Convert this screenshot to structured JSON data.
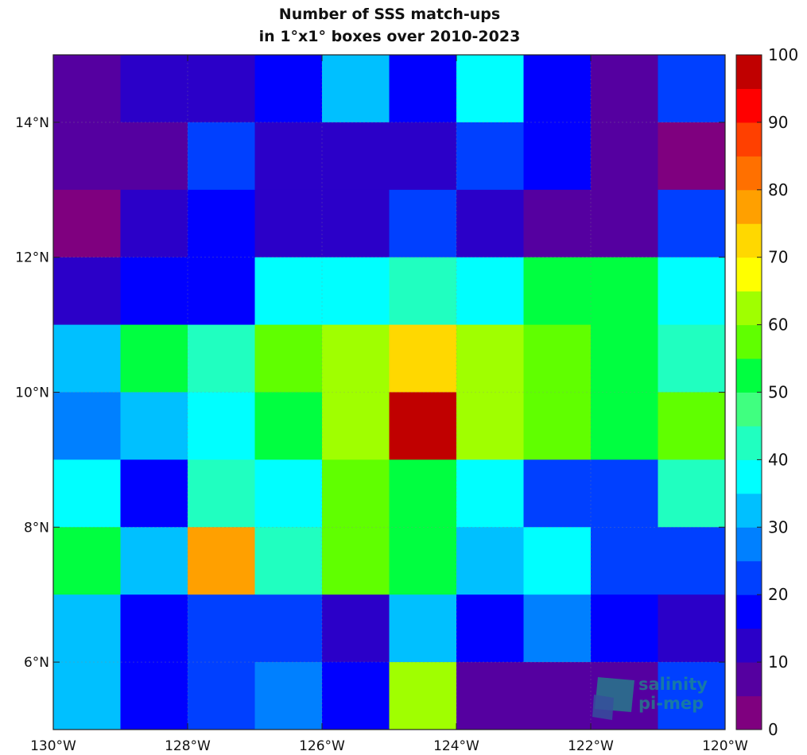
{
  "chart_data": {
    "type": "heatmap",
    "title": [
      "Number of SSS match-ups",
      "in 1°x1° boxes over 2010-2023"
    ],
    "x_centers": [
      -129.5,
      -128.5,
      -127.5,
      -126.5,
      -125.5,
      -124.5,
      -123.5,
      -122.5,
      -121.5,
      -120.5
    ],
    "y_centers": [
      14.5,
      13.5,
      12.5,
      11.5,
      10.5,
      9.5,
      8.5,
      7.5,
      6.5,
      5.5
    ],
    "xlim": [
      -130,
      -120
    ],
    "ylim": [
      5,
      15
    ],
    "x_ticks": [
      {
        "value": -130,
        "label": "130°W"
      },
      {
        "value": -128,
        "label": "128°W"
      },
      {
        "value": -126,
        "label": "126°W"
      },
      {
        "value": -124,
        "label": "124°W"
      },
      {
        "value": -122,
        "label": "122°W"
      },
      {
        "value": -120,
        "label": "120°W"
      }
    ],
    "y_ticks": [
      {
        "value": 14,
        "label": "14°N"
      },
      {
        "value": 12,
        "label": "12°N"
      },
      {
        "value": 10,
        "label": "10°N"
      },
      {
        "value": 8,
        "label": "8°N"
      },
      {
        "value": 6,
        "label": "6°N"
      }
    ],
    "values": [
      [
        8,
        12,
        12,
        17,
        32,
        17,
        37,
        17,
        8,
        22
      ],
      [
        8,
        8,
        22,
        12,
        12,
        12,
        22,
        17,
        8,
        3
      ],
      [
        3,
        12,
        17,
        12,
        12,
        22,
        12,
        8,
        8,
        22
      ],
      [
        12,
        17,
        17,
        37,
        37,
        42,
        37,
        52,
        52,
        37
      ],
      [
        32,
        52,
        42,
        57,
        62,
        72,
        62,
        57,
        52,
        42
      ],
      [
        27,
        32,
        37,
        52,
        62,
        97,
        62,
        57,
        52,
        57
      ],
      [
        37,
        17,
        42,
        37,
        57,
        52,
        37,
        22,
        22,
        42
      ],
      [
        52,
        32,
        77,
        42,
        57,
        52,
        32,
        37,
        22,
        22
      ],
      [
        32,
        17,
        22,
        22,
        12,
        32,
        17,
        27,
        17,
        12
      ],
      [
        32,
        17,
        22,
        27,
        17,
        62,
        8,
        8,
        8,
        22
      ]
    ],
    "colorbar": {
      "min": 0,
      "max": 100,
      "steps": 20,
      "colors": [
        "#7f007f",
        "#5500a0",
        "#2b00c8",
        "#0000ff",
        "#0040ff",
        "#0080ff",
        "#00c0ff",
        "#00ffff",
        "#20ffc0",
        "#40ff80",
        "#00ff40",
        "#60ff00",
        "#a0ff00",
        "#ffff00",
        "#ffd800",
        "#ffa000",
        "#ff7000",
        "#ff4000",
        "#ff0000",
        "#c00000",
        "#800000"
      ],
      "tick_values": [
        0,
        10,
        20,
        30,
        40,
        50,
        60,
        70,
        80,
        90,
        100
      ],
      "tick_labels": [
        "0",
        "10",
        "20",
        "30",
        "40",
        "50",
        "60",
        "70",
        "80",
        "90",
        "100"
      ]
    },
    "grid": true
  },
  "logo": {
    "line1": "salinity",
    "line2": "pi-mep",
    "color": "#1f8f86"
  }
}
